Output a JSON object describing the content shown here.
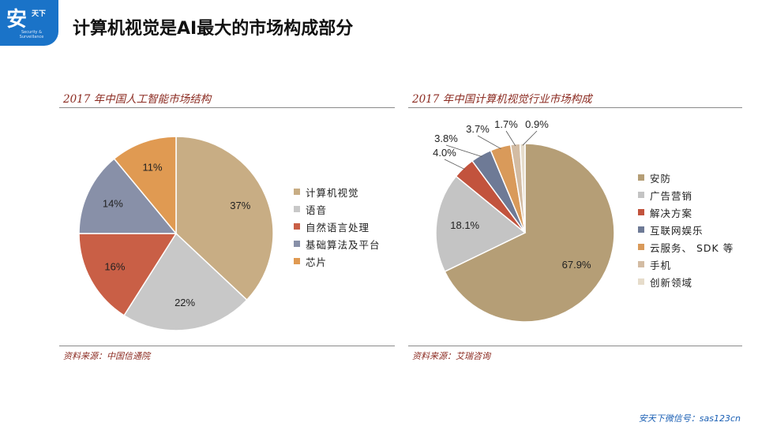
{
  "logo": {
    "char": "安",
    "badge": "天下",
    "sub": "Security & Surveillance"
  },
  "slide_title": "计算机视觉是AI最大的市场构成部分",
  "footer": "安天下微信号：sas123cn",
  "colors": [
    "#c8ad84",
    "#c8c8c8",
    "#c95f46",
    "#8890a8",
    "#e09a52",
    "#d1bca4",
    "#e8dccb"
  ],
  "chart_data": [
    {
      "type": "pie",
      "title": "2017 年中国人工智能市场结构",
      "source": "资料来源：中国信通院",
      "labels": [
        "计算机视觉",
        "语音",
        "自然语言处理",
        "基础算法及平台",
        "芯片"
      ],
      "values": [
        37,
        22,
        16,
        14,
        11
      ],
      "value_labels": [
        "37%",
        "22%",
        "16%",
        "14%",
        "11%"
      ],
      "colors": [
        "#c8ad84",
        "#c8c8c8",
        "#c95f46",
        "#8890a8",
        "#e09a52"
      ]
    },
    {
      "type": "pie",
      "title": "2017 年中国计算机视觉行业市场构成",
      "source": "资料来源：艾瑞咨询",
      "labels": [
        "安防",
        "广告营销",
        "解决方案",
        "互联网娱乐",
        "云服务、 SDK 等",
        "手机",
        "创新领域"
      ],
      "values": [
        67.9,
        18.1,
        4.0,
        3.8,
        3.7,
        1.7,
        0.9
      ],
      "value_labels": [
        "67.9%",
        "18.1%",
        "4.0%",
        "3.8%",
        "3.7%",
        "1.7%",
        "0.9%"
      ],
      "colors": [
        "#b59e76",
        "#c4c4c4",
        "#c2533d",
        "#6e7a96",
        "#d99a5a",
        "#d3bca3",
        "#e6dccb"
      ]
    }
  ]
}
